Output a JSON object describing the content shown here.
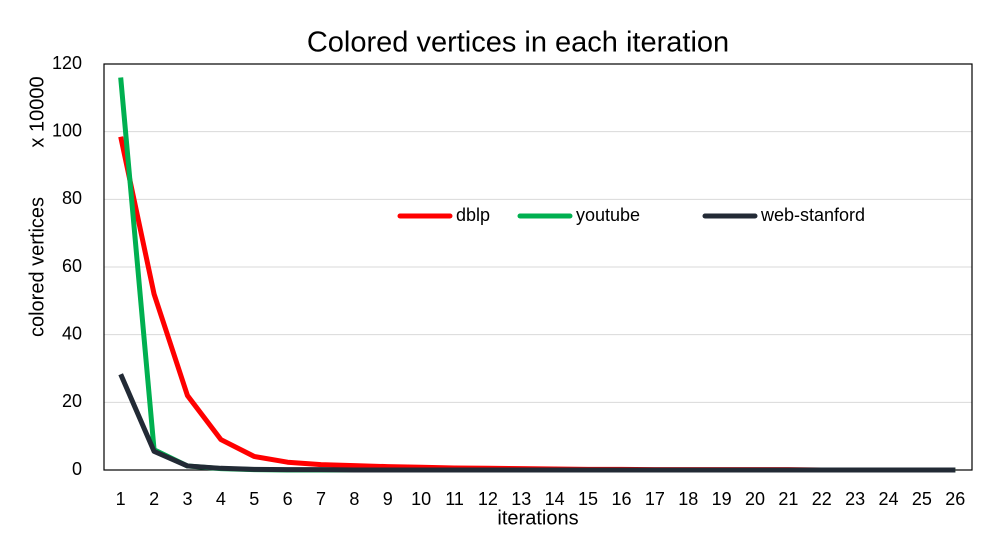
{
  "chart_data": {
    "type": "line",
    "title": "Colored vertices in each iteration",
    "y_label_unit": "x 10000",
    "y_label": "colored vertices",
    "x_label": "iterations",
    "categories": [
      "1",
      "2",
      "3",
      "4",
      "5",
      "6",
      "7",
      "8",
      "9",
      "10",
      "11",
      "12",
      "13",
      "14",
      "15",
      "16",
      "17",
      "18",
      "19",
      "20",
      "21",
      "22",
      "23",
      "24",
      "25",
      "26"
    ],
    "series": [
      {
        "name": "dblp",
        "color": "#ff0000",
        "values": [
          98.5,
          52,
          22,
          9,
          4,
          2.3,
          1.6,
          1.3,
          1.0,
          0.8,
          0.6,
          0.5,
          0.4,
          0.3,
          0.2,
          0.2,
          0.1,
          0.1,
          0.1,
          0.1,
          0.1,
          0,
          0,
          0,
          0,
          0
        ]
      },
      {
        "name": "youtube",
        "color": "#00b050",
        "values": [
          116,
          6,
          1.2,
          0.4,
          0.1,
          0,
          0,
          0,
          0,
          0,
          0,
          0,
          0,
          0,
          0,
          0,
          0,
          0,
          0,
          0,
          0,
          0,
          0,
          0,
          0,
          0
        ]
      },
      {
        "name": "web-stanford",
        "color": "#222a35",
        "values": [
          28.3,
          5.5,
          1.2,
          0.5,
          0.2,
          0.1,
          0.1,
          0,
          0,
          0,
          0,
          0,
          0,
          0,
          0,
          0,
          0,
          0,
          0,
          0,
          0,
          0,
          0,
          0,
          0,
          0
        ]
      }
    ],
    "ylim": [
      0,
      120
    ],
    "yticks": [
      0,
      20,
      40,
      60,
      80,
      100,
      120
    ],
    "grid": true,
    "legend": "center"
  }
}
